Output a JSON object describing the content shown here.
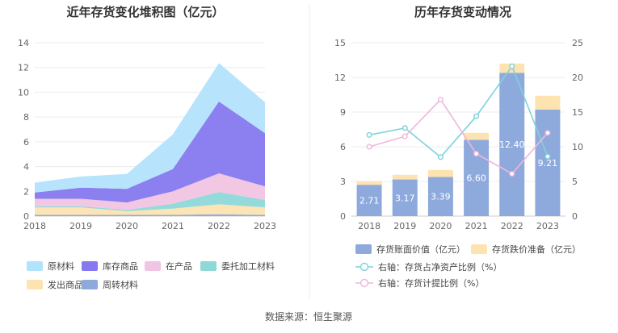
{
  "source": "数据来源：恒生聚源",
  "chart_data": [
    {
      "type": "area",
      "title": "近年存货变化堆积图（亿元）",
      "x": [
        "2018",
        "2019",
        "2020",
        "2021",
        "2022",
        "2023"
      ],
      "ylim": [
        0,
        14
      ],
      "yticks": [
        "0",
        "2",
        "4",
        "6",
        "8",
        "10",
        "12",
        "14"
      ],
      "stacked": true,
      "grid": true,
      "legend_position": "bottom",
      "series": [
        {
          "name": "周转材料",
          "color": "#8eaadc",
          "values": [
            0.1,
            0.1,
            0.1,
            0.1,
            0.15,
            0.1
          ]
        },
        {
          "name": "发出商品",
          "color": "#fde3b0",
          "values": [
            0.6,
            0.6,
            0.3,
            0.5,
            0.8,
            0.6
          ]
        },
        {
          "name": "委托加工材料",
          "color": "#8ed8d8",
          "values": [
            0.1,
            0.1,
            0.1,
            0.4,
            1.0,
            0.6
          ]
        },
        {
          "name": "在产品",
          "color": "#f0c4e3",
          "values": [
            0.6,
            0.6,
            0.6,
            1.0,
            1.5,
            1.1
          ]
        },
        {
          "name": "库存商品",
          "color": "#8678ee",
          "values": [
            0.5,
            0.9,
            1.1,
            1.8,
            5.8,
            4.3
          ]
        },
        {
          "name": "原材料",
          "color": "#b3e3fc",
          "values": [
            0.8,
            0.9,
            1.2,
            2.8,
            3.1,
            2.5
          ]
        }
      ],
      "legend_order": [
        "原材料",
        "库存商品",
        "在产品",
        "委托加工材料",
        "发出商品",
        "周转材料"
      ]
    },
    {
      "type": "bar",
      "title": "历年存货变动情况",
      "categories": [
        "2018",
        "2019",
        "2020",
        "2021",
        "2022",
        "2023"
      ],
      "left_ylim": [
        0,
        15
      ],
      "left_yticks": [
        "0",
        "3",
        "6",
        "9",
        "12",
        "15"
      ],
      "right_ylim": [
        0,
        25
      ],
      "right_yticks": [
        "0",
        "5",
        "10",
        "15",
        "20",
        "25"
      ],
      "grid": true,
      "legend_position": "bottom",
      "bars": [
        {
          "name": "存货账面价值（亿元）",
          "color": "#8eaadc",
          "values": [
            2.71,
            3.17,
            3.39,
            6.6,
            12.4,
            9.21
          ],
          "labels": [
            "2.71",
            "3.17",
            "3.39",
            "6.60",
            "12.40",
            "9.21"
          ]
        },
        {
          "name": "存货跌价准备（亿元）",
          "color": "#fde3b0",
          "values": [
            0.3,
            0.4,
            0.6,
            0.6,
            0.8,
            1.2
          ]
        }
      ],
      "lines": [
        {
          "name": "右轴：存货占净资产比例（%）",
          "color": "#7dd3d8",
          "values": [
            11.7,
            12.7,
            8.5,
            14.4,
            21.6,
            8.6
          ]
        },
        {
          "name": "右轴：存货计提比例（%）",
          "color": "#efb6dc",
          "values": [
            10.0,
            11.5,
            16.8,
            9.0,
            6.1,
            12.0
          ]
        }
      ]
    }
  ]
}
